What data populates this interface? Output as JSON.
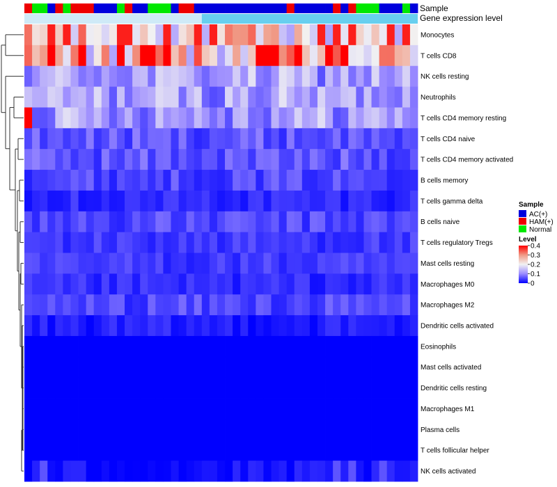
{
  "chart_data": {
    "type": "heatmap",
    "title": "",
    "annotation_tracks": [
      "Sample",
      "Gene expression level"
    ],
    "sample_groups": [
      "HAM",
      "Normal",
      "Normal",
      "AC",
      "HAM",
      "Normal",
      "HAM",
      "HAM",
      "HAM",
      "AC",
      "AC",
      "AC",
      "Normal",
      "HAM",
      "AC",
      "AC",
      "Normal",
      "Normal",
      "Normal",
      "AC",
      "HAM",
      "HAM",
      "AC",
      "AC",
      "AC",
      "AC",
      "AC",
      "AC",
      "AC",
      "AC",
      "AC",
      "AC",
      "AC",
      "AC",
      "HAM",
      "AC",
      "AC",
      "AC",
      "AC",
      "AC",
      "HAM",
      "AC",
      "HAM",
      "Normal",
      "Normal",
      "Normal",
      "AC",
      "AC",
      "AC",
      "Normal",
      "AC"
    ],
    "expression_track_colors": [
      "#cfeaf7",
      "#68cfef"
    ],
    "expression_split_column": 23,
    "rows": [
      "Monocytes",
      "T cells CD8",
      "NK cells resting",
      "Neutrophils",
      "T cells CD4 memory resting",
      "T cells CD4 naive",
      "T cells CD4 memory activated",
      "B cells memory",
      "T cells gamma delta",
      "B cells naive",
      "T cells regulatory  Tregs",
      "Mast cells resting",
      "Macrophages M0",
      "Macrophages M2",
      "Dendritic cells activated",
      "Eosinophils",
      "Mast cells activated",
      "Dendritic cells resting",
      "Macrophages M1",
      "Plasma cells",
      "T cells follicular helper",
      "NK cells activated"
    ],
    "row_levels_approx": [
      0.22,
      0.23,
      0.12,
      0.12,
      0.12,
      0.06,
      0.06,
      0.05,
      0.03,
      0.05,
      0.04,
      0.04,
      0.03,
      0.05,
      0.02,
      0.0,
      0.0,
      0.0,
      0.0,
      0.0,
      0.0,
      0.01
    ],
    "hot_spots": [
      {
        "row": "Monocytes",
        "columns": [
          3,
          5,
          12,
          13,
          18,
          22,
          24,
          38,
          40,
          42,
          47,
          49
        ],
        "level": 0.38
      },
      {
        "row": "T cells CD8",
        "columns": [
          3,
          7,
          12,
          15,
          16,
          18,
          30,
          31,
          32,
          35,
          39,
          41
        ],
        "level": 0.4
      },
      {
        "row": "T cells CD4 memory resting",
        "columns": [
          0
        ],
        "level": 0.4
      }
    ],
    "color_scale": {
      "stops": [
        0,
        0.1,
        0.2,
        0.3,
        0.4
      ],
      "colors": [
        "#0000ff",
        "#9c8cff",
        "#f2f2f2",
        "#f09a86",
        "#ff0000"
      ]
    },
    "legend": {
      "sample_title": "Sample",
      "sample_entries": [
        {
          "label": "AC(+)",
          "color": "#0000dd"
        },
        {
          "label": "HAM(+)",
          "color": "#ee0000"
        },
        {
          "label": "Normal",
          "color": "#00e800"
        }
      ],
      "level_title": "Level",
      "level_ticks": [
        "0.4",
        "0.3",
        "0.2",
        "0.1",
        "0"
      ],
      "position": "right"
    },
    "dendrogram": "rows"
  }
}
